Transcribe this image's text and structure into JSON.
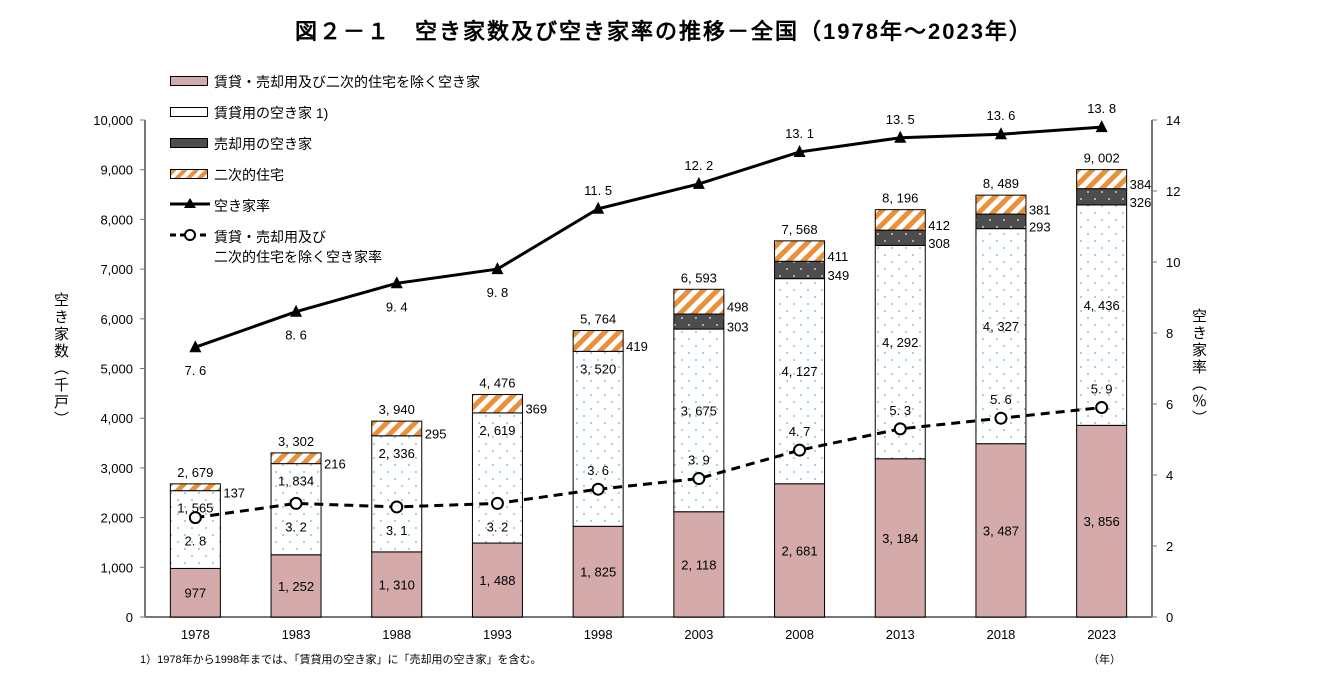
{
  "title": "図２－１　空き家数及び空き家率の推移－全国（1978年～2023年）",
  "footnote": "1）1978年から1998年までは、「賃貸用の空き家」に「売却用の空き家」を含む。",
  "legend": {
    "other": "賃貸・売却用及び二次的住宅を除く空き家",
    "rental": "賃貸用の空き家 1)",
    "sale": "売却用の空き家",
    "secondary": "二次的住宅",
    "rate": "空き家率",
    "rate_excl_line1": "賃貸・売却用及び",
    "rate_excl_line2": "二次的住宅を除く空き家率"
  },
  "chart_data": {
    "type": "bar",
    "stacked": true,
    "title": "図２－１　空き家数及び空き家率の推移－全国（1978年～2023年）",
    "xlabel": "（年）",
    "ylabel": "空き家数（千戸）",
    "y2label": "空き家率（％）",
    "ylim": [
      0,
      10000
    ],
    "y2lim": [
      0,
      14
    ],
    "yticks": [
      "0",
      "1,000",
      "2,000",
      "3,000",
      "4,000",
      "5,000",
      "6,000",
      "7,000",
      "8,000",
      "9,000",
      "10,000"
    ],
    "y2ticks": [
      "0",
      "2",
      "4",
      "6",
      "8",
      "10",
      "12",
      "14"
    ],
    "grid": false,
    "legend_position": "top-left",
    "categories": [
      "1978",
      "1983",
      "1988",
      "1993",
      "1998",
      "2003",
      "2008",
      "2013",
      "2018",
      "2023"
    ],
    "series": [
      {
        "name": "賃貸・売却用及び二次的住宅を除く空き家",
        "color": "#d4aaaa",
        "values": [
          977,
          1252,
          1310,
          1488,
          1825,
          2118,
          2681,
          3184,
          3487,
          3856
        ]
      },
      {
        "name": "賃貸用の空き家 1)",
        "color": "#ffffff",
        "values": [
          1565,
          1834,
          2336,
          2619,
          3520,
          3675,
          4127,
          4292,
          4327,
          4436
        ]
      },
      {
        "name": "売却用の空き家",
        "color": "#4d4d4d",
        "values": [
          null,
          null,
          null,
          null,
          null,
          303,
          349,
          308,
          293,
          326
        ]
      },
      {
        "name": "二次的住宅",
        "color": "#e8913a",
        "values": [
          137,
          216,
          295,
          369,
          419,
          498,
          411,
          412,
          381,
          384
        ]
      }
    ],
    "totals": [
      2679,
      3302,
      3940,
      4476,
      5764,
      6593,
      7568,
      8196,
      8489,
      9002
    ],
    "lines": [
      {
        "name": "空き家率",
        "axis": "right",
        "marker": "triangle",
        "values": [
          7.6,
          8.6,
          9.4,
          9.8,
          11.5,
          12.2,
          13.1,
          13.5,
          13.6,
          13.8
        ]
      },
      {
        "name": "賃貸・売却用及び二次的住宅を除く空き家率",
        "axis": "right",
        "marker": "open-circle",
        "dashed": true,
        "values": [
          2.8,
          3.2,
          3.1,
          3.2,
          3.6,
          3.9,
          4.7,
          5.3,
          5.6,
          5.9
        ]
      }
    ]
  }
}
